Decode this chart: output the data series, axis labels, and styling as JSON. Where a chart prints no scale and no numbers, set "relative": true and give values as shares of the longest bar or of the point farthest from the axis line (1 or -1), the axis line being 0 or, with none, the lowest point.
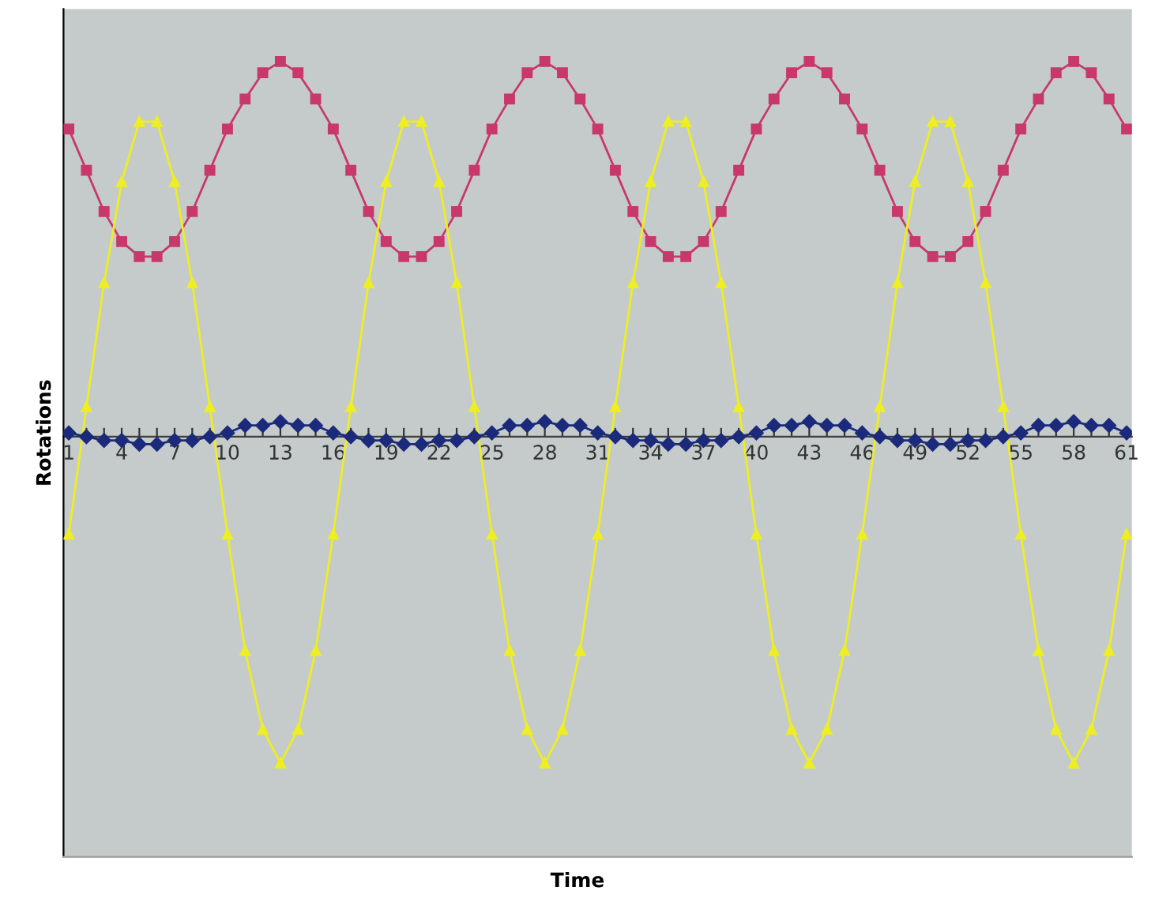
{
  "chart_data": {
    "type": "line",
    "relative": true,
    "annotations": [
      "Time"
    ],
    "ylabel": "Rotations",
    "line_style": "solid",
    "categories": [
      "1",
      null,
      null,
      "4",
      null,
      null,
      "7",
      null,
      null,
      "10",
      null,
      null,
      "13",
      null,
      null,
      "16",
      null,
      null,
      "19",
      null,
      null,
      "22",
      null,
      null,
      "25",
      null,
      null,
      "28",
      null,
      null,
      "31",
      null,
      null,
      "34",
      null,
      null,
      "37",
      null,
      null,
      "40",
      null,
      null,
      "43",
      null,
      null,
      "46",
      null,
      null,
      "49",
      null,
      null,
      "52",
      null,
      null,
      "55",
      null,
      null,
      "58",
      null,
      null,
      "61"
    ],
    "series": [
      {
        "color": "#c8386a",
        "marker": "square",
        "values": [
          0.82,
          0.71,
          0.6,
          0.52,
          0.48,
          0.48,
          0.52,
          0.6,
          0.71,
          0.82,
          0.9,
          0.97,
          1,
          0.97,
          0.9,
          0.82,
          0.71,
          0.6,
          0.52,
          0.48,
          0.48,
          0.52,
          0.6,
          0.71,
          0.82,
          0.9,
          0.97,
          1,
          0.97,
          0.9,
          0.82,
          0.71,
          0.6,
          0.52,
          0.48,
          0.48,
          0.52,
          0.6,
          0.71,
          0.82,
          0.9,
          0.97,
          1,
          0.97,
          0.9,
          0.82,
          0.71,
          0.6,
          0.52,
          0.48,
          0.48,
          0.52,
          0.6,
          0.71,
          0.82,
          0.9,
          0.97,
          1,
          0.97,
          0.9,
          0.82
        ]
      },
      {
        "color": "#eeee22",
        "marker": "triangle",
        "values": [
          -0.26,
          0.08,
          0.41,
          0.68,
          0.84,
          0.84,
          0.68,
          0.41,
          0.08,
          -0.26,
          -0.57,
          -0.78,
          -0.87,
          -0.78,
          -0.57,
          -0.26,
          0.08,
          0.41,
          0.68,
          0.84,
          0.84,
          0.68,
          0.41,
          0.08,
          -0.26,
          -0.57,
          -0.78,
          -0.87,
          -0.78,
          -0.57,
          -0.26,
          0.08,
          0.41,
          0.68,
          0.84,
          0.84,
          0.68,
          0.41,
          0.08,
          -0.26,
          -0.57,
          -0.78,
          -0.87,
          -0.78,
          -0.57,
          -0.26,
          0.08,
          0.41,
          0.68,
          0.84,
          0.84,
          0.68,
          0.41,
          0.08,
          -0.26,
          -0.57,
          -0.78,
          -0.87,
          -0.78,
          -0.57,
          -0.26
        ]
      },
      {
        "color": "#1c2a7c",
        "marker": "diamond",
        "values": [
          0.01,
          0,
          -0.01,
          -0.01,
          -0.02,
          -0.02,
          -0.01,
          -0.01,
          0,
          0.01,
          0.03,
          0.03,
          0.04,
          0.03,
          0.03,
          0.01,
          0,
          -0.01,
          -0.01,
          -0.02,
          -0.02,
          -0.01,
          -0.01,
          0,
          0.01,
          0.03,
          0.03,
          0.04,
          0.03,
          0.03,
          0.01,
          0,
          -0.01,
          -0.01,
          -0.02,
          -0.02,
          -0.01,
          -0.01,
          0,
          0.01,
          0.03,
          0.03,
          0.04,
          0.03,
          0.03,
          0.01,
          0,
          -0.01,
          -0.01,
          -0.02,
          -0.02,
          -0.01,
          -0.01,
          0,
          0.01,
          0.03,
          0.03,
          0.04,
          0.03,
          0.03,
          0.01
        ]
      }
    ]
  }
}
